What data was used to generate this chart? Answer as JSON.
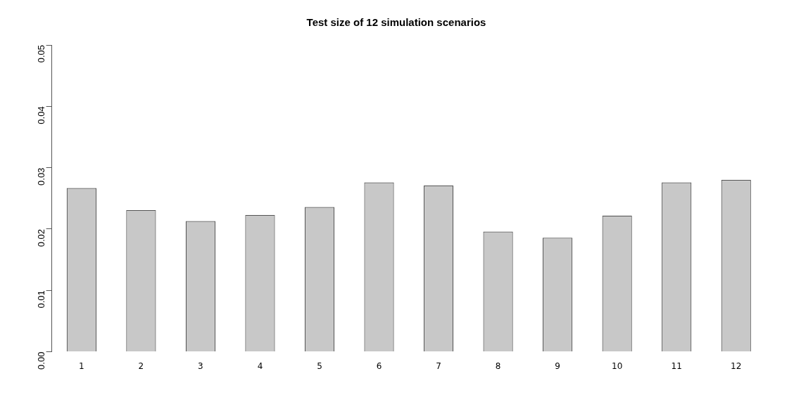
{
  "chart_data": {
    "type": "bar",
    "title": "Test size of 12 simulation scenarios",
    "categories": [
      "1",
      "2",
      "3",
      "4",
      "5",
      "6",
      "7",
      "8",
      "9",
      "10",
      "11",
      "12"
    ],
    "values": [
      0.0267,
      0.0231,
      0.0213,
      0.0223,
      0.0236,
      0.0276,
      0.0271,
      0.0196,
      0.0186,
      0.0222,
      0.0276,
      0.028
    ],
    "color": "#c8c8c8",
    "ylim": [
      0,
      0.05
    ],
    "yticks": [
      {
        "value": 0,
        "label": "0.00"
      },
      {
        "value": 0.01,
        "label": "0.01"
      },
      {
        "value": 0.02,
        "label": "0.02"
      },
      {
        "value": 0.03,
        "label": "0.03"
      },
      {
        "value": 0.04,
        "label": "0.04"
      },
      {
        "value": 0.05,
        "label": "0.05"
      }
    ],
    "grid": false,
    "legend": false
  }
}
